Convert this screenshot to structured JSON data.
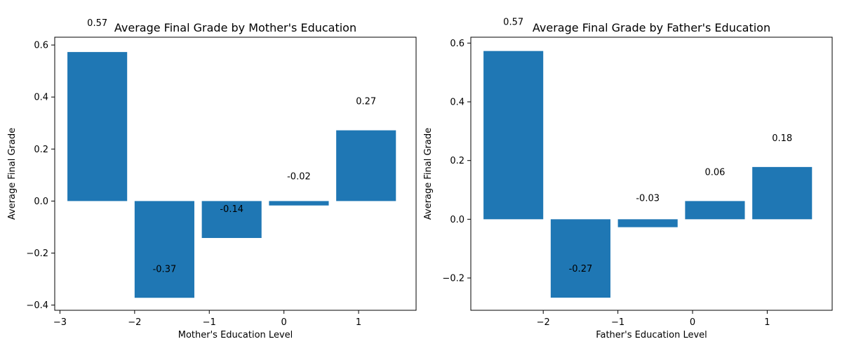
{
  "chart_data": [
    {
      "type": "bar",
      "title": "Average Final Grade by Mother's Education",
      "xlabel": "Mother's Education Level",
      "ylabel": "Average Final Grade",
      "x": [
        -2.5,
        -1.6,
        -0.7,
        0.2,
        1.1
      ],
      "values": [
        0.573,
        -0.372,
        -0.142,
        -0.017,
        0.272
      ],
      "data_labels": [
        "0.57",
        "-0.37",
        "-0.14",
        "-0.02",
        "0.27"
      ],
      "xlim": [
        -3.07,
        1.77
      ],
      "ylim": [
        -0.42,
        0.63
      ],
      "xticks": [
        -3,
        -2,
        -1,
        0,
        1
      ],
      "xtick_labels": [
        "−3",
        "−2",
        "−1",
        "0",
        "1"
      ],
      "yticks": [
        -0.4,
        -0.2,
        0.0,
        0.2,
        0.4,
        0.6
      ],
      "ytick_labels": [
        "−0.4",
        "−0.2",
        "0.0",
        "0.2",
        "0.4",
        "0.6"
      ],
      "color": "#1f77b4",
      "grid": false,
      "legend": "none"
    },
    {
      "type": "bar",
      "title": "Average Final Grade by Father's Education",
      "xlabel": "Father's Education Level",
      "ylabel": "Average Final Grade",
      "x": [
        -2.4,
        -1.5,
        -0.6,
        0.3,
        1.2
      ],
      "values": [
        0.573,
        -0.267,
        -0.027,
        0.062,
        0.178
      ],
      "data_labels": [
        "0.57",
        "-0.27",
        "-0.03",
        "0.06",
        "0.18"
      ],
      "xlim": [
        -2.97,
        1.87
      ],
      "ylim": [
        -0.31,
        0.62
      ],
      "xticks": [
        -2,
        -1,
        0,
        1
      ],
      "xtick_labels": [
        "−2",
        "−1",
        "0",
        "1"
      ],
      "yticks": [
        -0.2,
        0.0,
        0.2,
        0.4,
        0.6
      ],
      "ytick_labels": [
        "−0.2",
        "0.0",
        "0.2",
        "0.4",
        "0.6"
      ],
      "color": "#1f77b4",
      "grid": false,
      "legend": "none"
    }
  ]
}
